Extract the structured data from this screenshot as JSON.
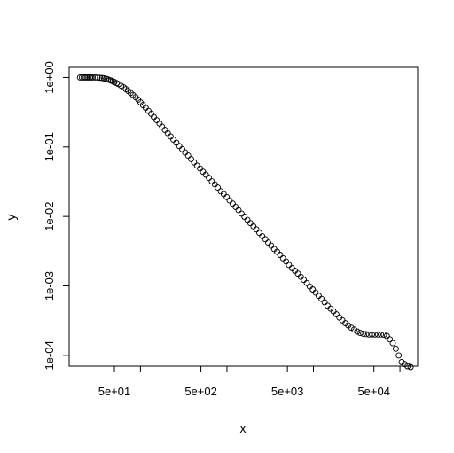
{
  "chart_data": {
    "type": "scatter",
    "title": "",
    "xlabel": "x",
    "ylabel": "y",
    "x_scale": "log",
    "y_scale": "log",
    "xlim": [
      15,
      160000
    ],
    "ylim": [
      7e-05,
      1.4
    ],
    "grid": false,
    "legend": "none",
    "marker": "open-circle",
    "x_ticks": [
      {
        "value": 50,
        "label": "5e+01"
      },
      {
        "value": 100,
        "label": ""
      },
      {
        "value": 500,
        "label": "5e+02"
      },
      {
        "value": 1000,
        "label": ""
      },
      {
        "value": 5000,
        "label": "5e+03"
      },
      {
        "value": 10000,
        "label": ""
      },
      {
        "value": 50000,
        "label": "5e+04"
      },
      {
        "value": 100000,
        "label": ""
      }
    ],
    "y_ticks": [
      {
        "value": 1,
        "label": "1e+00"
      },
      {
        "value": 0.1,
        "label": "1e-01"
      },
      {
        "value": 0.01,
        "label": "1e-02"
      },
      {
        "value": 0.001,
        "label": "1e-03"
      },
      {
        "value": 0.0001,
        "label": "1e-04"
      }
    ],
    "points": [
      [
        20,
        1.0
      ],
      [
        21,
        1.0
      ],
      [
        22,
        1.0
      ],
      [
        23,
        1.0
      ],
      [
        24,
        1.0
      ],
      [
        25,
        1.0
      ],
      [
        26,
        1.0
      ],
      [
        27,
        1.0
      ],
      [
        28,
        1.0
      ],
      [
        30,
        1.0
      ],
      [
        32,
        0.995
      ],
      [
        34,
        0.99
      ],
      [
        36,
        0.98
      ],
      [
        38,
        0.97
      ],
      [
        40,
        0.955
      ],
      [
        42,
        0.94
      ],
      [
        44,
        0.92
      ],
      [
        46,
        0.9
      ],
      [
        48,
        0.88
      ],
      [
        50,
        0.86
      ],
      [
        53,
        0.83
      ],
      [
        56,
        0.8
      ],
      [
        60,
        0.76
      ],
      [
        64,
        0.72
      ],
      [
        68,
        0.68
      ],
      [
        72,
        0.64
      ],
      [
        77,
        0.6
      ],
      [
        82,
        0.56
      ],
      [
        88,
        0.52
      ],
      [
        94,
        0.48
      ],
      [
        100,
        0.44
      ],
      [
        107,
        0.4
      ],
      [
        115,
        0.365
      ],
      [
        124,
        0.33
      ],
      [
        133,
        0.3
      ],
      [
        143,
        0.27
      ],
      [
        154,
        0.243
      ],
      [
        166,
        0.218
      ],
      [
        178,
        0.196
      ],
      [
        192,
        0.176
      ],
      [
        207,
        0.158
      ],
      [
        223,
        0.142
      ],
      [
        240,
        0.128
      ],
      [
        260,
        0.115
      ],
      [
        281,
        0.103
      ],
      [
        304,
        0.093
      ],
      [
        329,
        0.083
      ],
      [
        356,
        0.075
      ],
      [
        385,
        0.067
      ],
      [
        417,
        0.06
      ],
      [
        451,
        0.054
      ],
      [
        488,
        0.049
      ],
      [
        528,
        0.044
      ],
      [
        571,
        0.04
      ],
      [
        618,
        0.036
      ],
      [
        669,
        0.032
      ],
      [
        724,
        0.029
      ],
      [
        784,
        0.026
      ],
      [
        848,
        0.023
      ],
      [
        918,
        0.021
      ],
      [
        993,
        0.019
      ],
      [
        1075,
        0.017
      ],
      [
        1163,
        0.0153
      ],
      [
        1259,
        0.0137
      ],
      [
        1362,
        0.0123
      ],
      [
        1474,
        0.011
      ],
      [
        1595,
        0.0099
      ],
      [
        1726,
        0.0089
      ],
      [
        1868,
        0.008
      ],
      [
        2021,
        0.0072
      ],
      [
        2187,
        0.0065
      ],
      [
        2367,
        0.0058
      ],
      [
        2561,
        0.0052
      ],
      [
        2772,
        0.0047
      ],
      [
        3000,
        0.0042
      ],
      [
        3246,
        0.0038
      ],
      [
        3513,
        0.0034
      ],
      [
        3802,
        0.0031
      ],
      [
        4114,
        0.0028
      ],
      [
        4452,
        0.0025
      ],
      [
        4818,
        0.00225
      ],
      [
        5214,
        0.002
      ],
      [
        5642,
        0.0018
      ],
      [
        6106,
        0.00165
      ],
      [
        6607,
        0.0015
      ],
      [
        7150,
        0.00135
      ],
      [
        7737,
        0.00122
      ],
      [
        8373,
        0.0011
      ],
      [
        9061,
        0.00098
      ],
      [
        9805,
        0.00089
      ],
      [
        10610,
        0.0008
      ],
      [
        11482,
        0.00072
      ],
      [
        12425,
        0.00065
      ],
      [
        13446,
        0.00058
      ],
      [
        14551,
        0.00052
      ],
      [
        15746,
        0.00047
      ],
      [
        17040,
        0.00043
      ],
      [
        18440,
        0.00039
      ],
      [
        19955,
        0.00035
      ],
      [
        21594,
        0.00032
      ],
      [
        23368,
        0.00029
      ],
      [
        25288,
        0.00027
      ],
      [
        27366,
        0.00025
      ],
      [
        29614,
        0.000235
      ],
      [
        32047,
        0.00022
      ],
      [
        34680,
        0.00021
      ],
      [
        37529,
        0.000205
      ],
      [
        40612,
        0.000202
      ],
      [
        43948,
        0.0002
      ],
      [
        47559,
        0.0002
      ],
      [
        51466,
        0.0002
      ],
      [
        55694,
        0.0002
      ],
      [
        60270,
        0.0002
      ],
      [
        65221,
        0.000198
      ],
      [
        70580,
        0.00019
      ],
      [
        76378,
        0.00017
      ],
      [
        82653,
        0.00015
      ],
      [
        89443,
        0.000125
      ],
      [
        96792,
        0.0001
      ],
      [
        104744,
        8e-05
      ],
      [
        113349,
        7.5e-05
      ],
      [
        122661,
        7e-05
      ],
      [
        132738,
        6.8e-05
      ]
    ]
  }
}
